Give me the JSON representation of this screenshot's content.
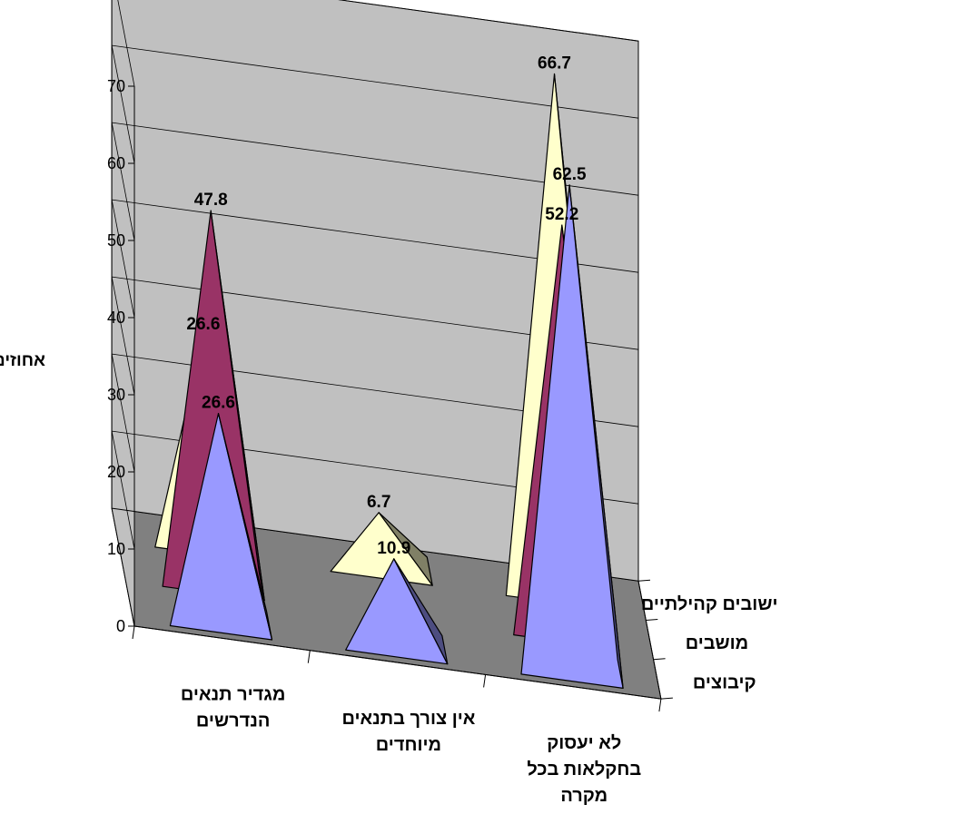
{
  "chart_data": {
    "type": "bar",
    "subtype": "3d-pyramid",
    "title": "",
    "ylabel": "אחוזים",
    "ylim": [
      0,
      70
    ],
    "yticks": [
      0,
      10,
      20,
      30,
      40,
      50,
      60,
      70
    ],
    "grid": true,
    "legend": "none",
    "categories": [
      {
        "name": "mgadir",
        "lines": [
          "מגדיר תנאים",
          "הנדרשים"
        ]
      },
      {
        "name": "ein-tsorech",
        "lines": [
          "אין צורך בתנאים",
          "מיוחדים"
        ]
      },
      {
        "name": "lo-yaasok",
        "lines": [
          "לא יעסוק",
          "בחקלאות בכל",
          "מקרה"
        ]
      }
    ],
    "series": [
      {
        "name": "קיבוצים",
        "values": [
          26.6,
          10.9,
          62.5
        ],
        "labels": [
          "26.6",
          "10.9",
          "62.5"
        ]
      },
      {
        "name": "מושבים",
        "values": [
          47.8,
          0,
          52.2
        ],
        "labels": [
          "47.8",
          "",
          "52.2"
        ]
      },
      {
        "name": "ישובים קהילתיים",
        "values": [
          26.6,
          6.7,
          66.7
        ],
        "labels": [
          "26.6",
          "6.7",
          "66.7"
        ]
      }
    ],
    "colors": {
      "kibbutzim": "#9999ff",
      "moshavim": "#993366",
      "kehilati": "#ffffcc",
      "floor": "#808080",
      "walls": "#c0c0c0"
    }
  }
}
